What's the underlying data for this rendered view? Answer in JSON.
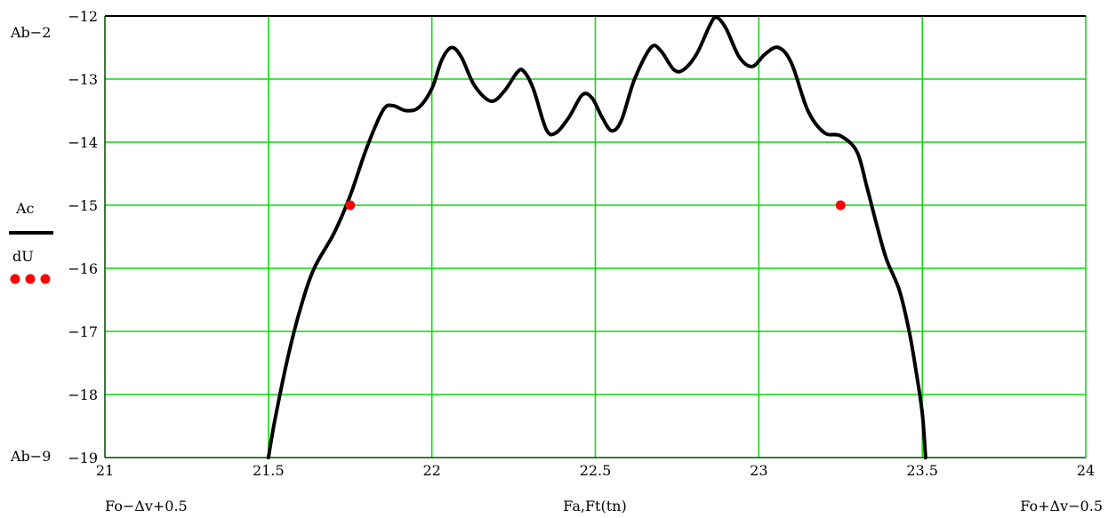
{
  "chart_data": {
    "type": "line",
    "xlim": [
      21,
      24
    ],
    "ylim": [
      -19,
      -12
    ],
    "x_ticks": [
      21,
      21.5,
      22,
      22.5,
      23,
      23.5,
      24
    ],
    "x_tick_labels": [
      "21",
      "21.5",
      "22",
      "22.5",
      "23",
      "23.5",
      "24"
    ],
    "y_ticks": [
      -12,
      -13,
      -14,
      -15,
      -16,
      -17,
      -18,
      -19
    ],
    "y_tick_labels": [
      "-12",
      "-13",
      "-14",
      "-15",
      "-16",
      "-17",
      "-18",
      "-19"
    ],
    "xlabel": "Fa,Ft(tn)",
    "x_range_labels": {
      "min": "Fo−Δv+0.5",
      "max": "Fo+Δv−0.5"
    },
    "y_range_labels": {
      "max": "Ab−2",
      "min": "Ab−9"
    },
    "grid": true,
    "grid_color": "#00dd00",
    "legend_position": "left",
    "series": [
      {
        "name": "Ac",
        "style": "line",
        "color": "#000000",
        "points": [
          [
            21.5,
            -19.0
          ],
          [
            21.52,
            -18.4
          ],
          [
            21.56,
            -17.4
          ],
          [
            21.6,
            -16.6
          ],
          [
            21.64,
            -16.0
          ],
          [
            21.7,
            -15.45
          ],
          [
            21.75,
            -14.85
          ],
          [
            21.8,
            -14.1
          ],
          [
            21.85,
            -13.5
          ],
          [
            21.88,
            -13.42
          ],
          [
            21.92,
            -13.5
          ],
          [
            21.96,
            -13.45
          ],
          [
            22.0,
            -13.15
          ],
          [
            22.03,
            -12.7
          ],
          [
            22.06,
            -12.5
          ],
          [
            22.09,
            -12.65
          ],
          [
            22.13,
            -13.1
          ],
          [
            22.18,
            -13.35
          ],
          [
            22.22,
            -13.2
          ],
          [
            22.26,
            -12.9
          ],
          [
            22.28,
            -12.87
          ],
          [
            22.31,
            -13.15
          ],
          [
            22.35,
            -13.8
          ],
          [
            22.38,
            -13.85
          ],
          [
            22.42,
            -13.6
          ],
          [
            22.46,
            -13.25
          ],
          [
            22.49,
            -13.3
          ],
          [
            22.52,
            -13.6
          ],
          [
            22.55,
            -13.82
          ],
          [
            22.58,
            -13.65
          ],
          [
            22.62,
            -13.0
          ],
          [
            22.67,
            -12.5
          ],
          [
            22.7,
            -12.55
          ],
          [
            22.74,
            -12.85
          ],
          [
            22.77,
            -12.85
          ],
          [
            22.81,
            -12.6
          ],
          [
            22.85,
            -12.15
          ],
          [
            22.87,
            -12.02
          ],
          [
            22.9,
            -12.2
          ],
          [
            22.94,
            -12.65
          ],
          [
            22.98,
            -12.8
          ],
          [
            23.02,
            -12.6
          ],
          [
            23.06,
            -12.5
          ],
          [
            23.1,
            -12.75
          ],
          [
            23.15,
            -13.5
          ],
          [
            23.2,
            -13.85
          ],
          [
            23.25,
            -13.9
          ],
          [
            23.3,
            -14.15
          ],
          [
            23.33,
            -14.7
          ],
          [
            23.36,
            -15.3
          ],
          [
            23.39,
            -15.85
          ],
          [
            23.43,
            -16.35
          ],
          [
            23.46,
            -17.0
          ],
          [
            23.48,
            -17.6
          ],
          [
            23.5,
            -18.3
          ],
          [
            23.51,
            -19.0
          ]
        ]
      },
      {
        "name": "dU",
        "style": "dots",
        "color": "#ff0000",
        "points": [
          [
            21.75,
            -15.0
          ],
          [
            23.25,
            -15.0
          ]
        ]
      }
    ]
  }
}
